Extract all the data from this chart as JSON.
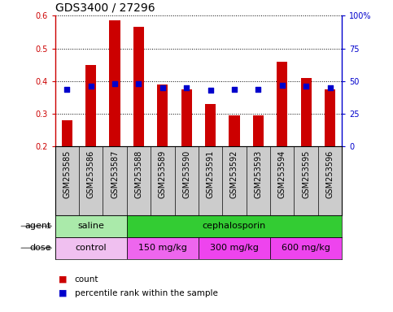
{
  "title": "GDS3400 / 27296",
  "samples": [
    "GSM253585",
    "GSM253586",
    "GSM253587",
    "GSM253588",
    "GSM253589",
    "GSM253590",
    "GSM253591",
    "GSM253592",
    "GSM253593",
    "GSM253594",
    "GSM253595",
    "GSM253596"
  ],
  "counts": [
    0.28,
    0.45,
    0.585,
    0.565,
    0.39,
    0.375,
    0.33,
    0.295,
    0.295,
    0.46,
    0.41,
    0.375
  ],
  "percentile_ranks": [
    44,
    46,
    48,
    48,
    45,
    45,
    43,
    44,
    44,
    47,
    46,
    45
  ],
  "ylim": [
    0.2,
    0.6
  ],
  "yticks": [
    0.2,
    0.3,
    0.4,
    0.5,
    0.6
  ],
  "y2ticks": [
    0,
    25,
    50,
    75,
    100
  ],
  "y2labels": [
    "0",
    "25",
    "50",
    "75",
    "100%"
  ],
  "bar_color": "#cc0000",
  "dot_color": "#0000cc",
  "grid_color": "#000000",
  "background_color": "#ffffff",
  "sample_box_color": "#cccccc",
  "agent_saline_color": "#99ee99",
  "agent_ceph_color": "#33dd33",
  "dose_control_color": "#f0c0f0",
  "dose_150_color": "#ee66ee",
  "dose_300_color": "#dd44dd",
  "dose_600_color": "#ee44ee",
  "agent_row": {
    "label": "agent",
    "groups": [
      {
        "text": "saline",
        "start": 0,
        "end": 3,
        "color": "#aaeaaa"
      },
      {
        "text": "cephalosporin",
        "start": 3,
        "end": 12,
        "color": "#33cc33"
      }
    ]
  },
  "dose_row": {
    "label": "dose",
    "groups": [
      {
        "text": "control",
        "start": 0,
        "end": 3,
        "color": "#f0c0f0"
      },
      {
        "text": "150 mg/kg",
        "start": 3,
        "end": 6,
        "color": "#ee66ee"
      },
      {
        "text": "300 mg/kg",
        "start": 6,
        "end": 9,
        "color": "#ee44ee"
      },
      {
        "text": "600 mg/kg",
        "start": 9,
        "end": 12,
        "color": "#ee44ee"
      }
    ]
  },
  "legend_count_color": "#cc0000",
  "legend_dot_color": "#0000cc",
  "title_fontsize": 10,
  "tick_fontsize": 7,
  "label_fontsize": 8,
  "sample_fontsize": 7,
  "bar_width": 0.45
}
